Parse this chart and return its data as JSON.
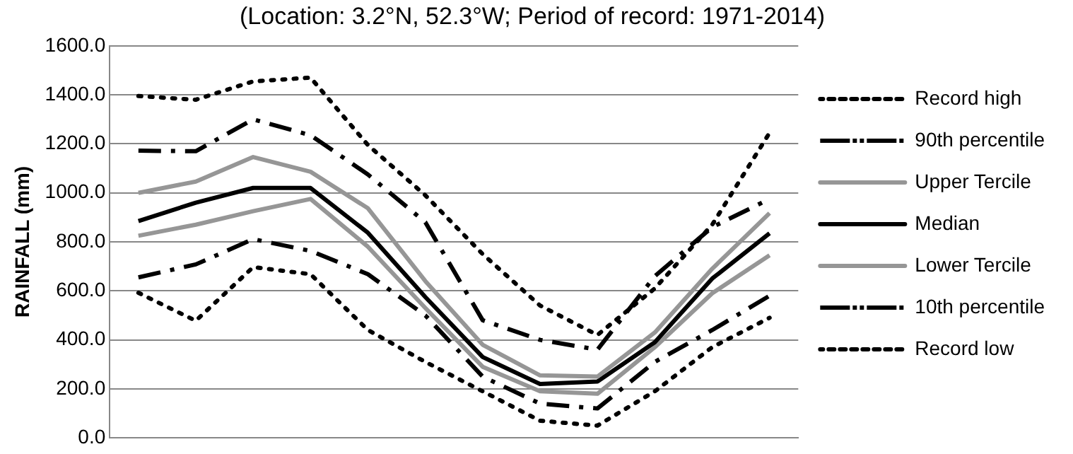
{
  "chart_data": {
    "type": "line",
    "title": "(Location: 3.2°N, 52.3°W; Period of record: 1971-2014)",
    "ylabel": "RAINFALL (mm)",
    "categories": [
      null,
      null,
      null,
      null,
      null,
      null,
      null,
      null,
      null,
      null,
      null,
      null
    ],
    "series": [
      {
        "name": "Record high",
        "color": "#000000",
        "line_style": "dotted",
        "values": [
          1395,
          1380,
          1455,
          1470,
          1195,
          990,
          750,
          540,
          420,
          610,
          870,
          1245
        ]
      },
      {
        "name": "90th percentile",
        "color": "#000000",
        "line_style": "dashed",
        "values": [
          1172,
          1170,
          1300,
          1235,
          1075,
          880,
          480,
          400,
          360,
          660,
          860,
          975
        ]
      },
      {
        "name": "Upper Tercile",
        "color": "#969696",
        "line_style": "solid",
        "values": [
          1000,
          1046,
          1146,
          1086,
          937,
          640,
          380,
          255,
          250,
          430,
          690,
          917
        ]
      },
      {
        "name": "Median",
        "color": "#000000",
        "line_style": "solid",
        "values": [
          885,
          960,
          1020,
          1020,
          837,
          575,
          330,
          220,
          230,
          390,
          650,
          835
        ]
      },
      {
        "name": "Lower Tercile",
        "color": "#969696",
        "line_style": "solid",
        "values": [
          825,
          870,
          925,
          975,
          780,
          530,
          290,
          190,
          180,
          370,
          590,
          745
        ]
      },
      {
        "name": "10th percentile",
        "color": "#000000",
        "line_style": "dashed",
        "values": [
          655,
          708,
          811,
          763,
          668,
          500,
          250,
          140,
          120,
          310,
          440,
          580
        ]
      },
      {
        "name": "Record low",
        "color": "#000000",
        "line_style": "dotted",
        "values": [
          592,
          478,
          697,
          668,
          440,
          310,
          190,
          70,
          50,
          190,
          370,
          490
        ]
      }
    ],
    "ylim": [
      0,
      1600
    ],
    "yticks": [
      {
        "value": 0,
        "label": "0.0"
      },
      {
        "value": 200,
        "label": "200.0"
      },
      {
        "value": 400,
        "label": "400.0"
      },
      {
        "value": 600,
        "label": "600.0"
      },
      {
        "value": 800,
        "label": "800.0"
      },
      {
        "value": 1000,
        "label": "1000.0"
      },
      {
        "value": 1200,
        "label": "1200.0"
      },
      {
        "value": 1400,
        "label": "1400.0"
      },
      {
        "value": 1600,
        "label": "1600.0"
      }
    ],
    "grid": "y",
    "legend": "right",
    "tick_labels": "y",
    "marker": "none"
  }
}
